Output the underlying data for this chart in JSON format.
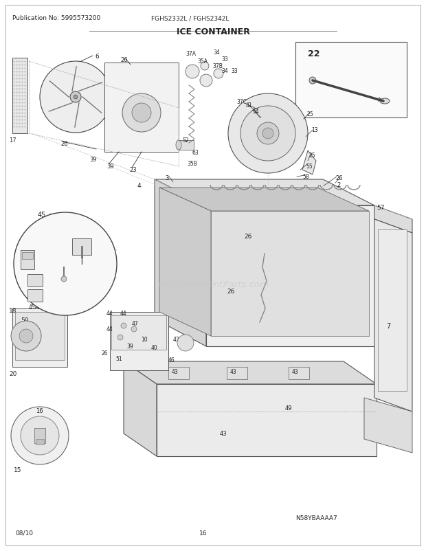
{
  "pub_no": "Publication No: 5995573200",
  "model": "FGHS2332L / FGHS2342L",
  "title": "ICE CONTAINER",
  "date": "08/10",
  "page": "16",
  "diagram_id": "N58YBAAAA7",
  "bg_color": "#ffffff",
  "fig_width": 6.2,
  "fig_height": 8.03,
  "dpi": 100,
  "watermark": "eReplacementParts.com"
}
